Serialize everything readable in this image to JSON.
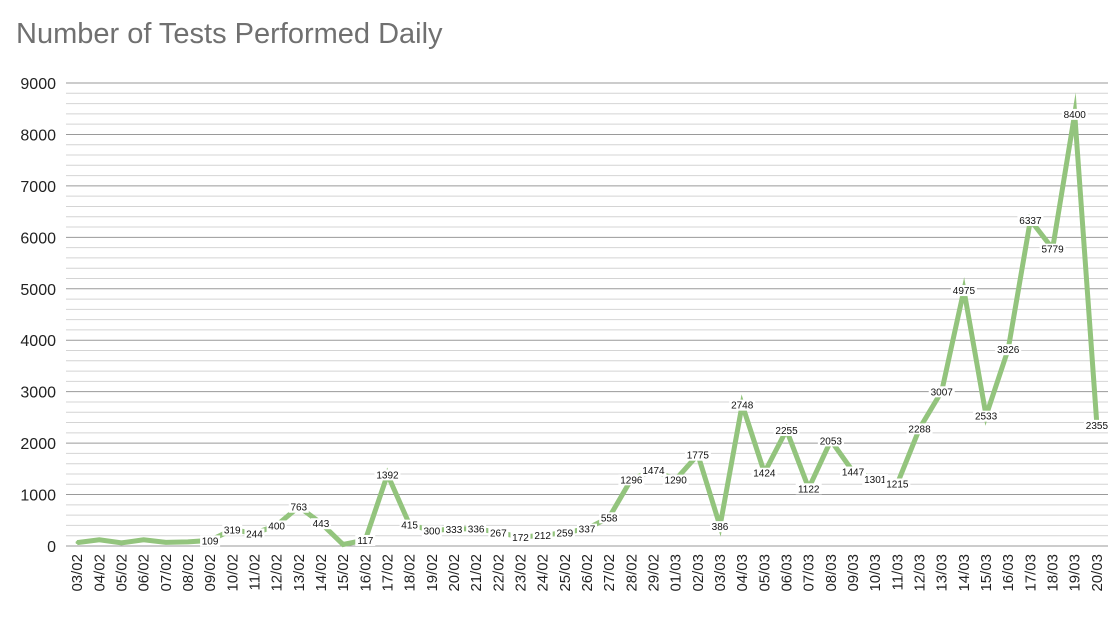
{
  "chart_data": {
    "type": "line",
    "title": "Number of Tests Performed Daily",
    "xlabel": "",
    "ylabel": "",
    "ylim": [
      0,
      9000
    ],
    "yticks": [
      0,
      1000,
      2000,
      3000,
      4000,
      5000,
      6000,
      7000,
      8000,
      9000
    ],
    "minor_grid_step": 200,
    "grid": true,
    "legend": "none",
    "line_color": "#93c47d",
    "categories": [
      "03/02",
      "04/02",
      "05/02",
      "06/02",
      "07/02",
      "08/02",
      "09/02",
      "10/02",
      "11/02",
      "12/02",
      "13/02",
      "14/02",
      "15/02",
      "16/02",
      "17/02",
      "18/02",
      "19/02",
      "20/02",
      "21/02",
      "22/02",
      "23/02",
      "24/02",
      "25/02",
      "26/02",
      "27/02",
      "28/02",
      "29/02",
      "01/03",
      "02/03",
      "03/03",
      "04/03",
      "05/03",
      "06/03",
      "07/03",
      "08/03",
      "09/03",
      "10/03",
      "11/03",
      "12/03",
      "13/03",
      "14/03",
      "15/03",
      "16/03",
      "17/03",
      "18/03",
      "19/03",
      "20/03"
    ],
    "series": [
      {
        "values": [
          67,
          120,
          60,
          120,
          70,
          80,
          109,
          319,
          244,
          400,
          763,
          443,
          30,
          117,
          1392,
          415,
          300,
          333,
          336,
          267,
          172,
          212,
          259,
          337,
          558,
          1296,
          1474,
          1290,
          1775,
          386,
          2748,
          1424,
          2255,
          1122,
          2053,
          1447,
          1301,
          1215,
          2288,
          3007,
          4975,
          2533,
          3826,
          6337,
          5779,
          8400,
          2355
        ],
        "labels": [
          "",
          "",
          "",
          "",
          "",
          "",
          "109",
          "319",
          "244",
          "400",
          "763",
          "443",
          "",
          "117",
          "1392",
          "415",
          "300",
          "333",
          "336",
          "267",
          "172",
          "212",
          "259",
          "337",
          "558",
          "1296",
          "1474",
          "1290",
          "1775",
          "386",
          "2748",
          "1424",
          "2255",
          "1122",
          "2053",
          "1447",
          "1301",
          "1215",
          "2288",
          "3007",
          "4975",
          "2533",
          "3826",
          "6337",
          "5779",
          "8400",
          "2355"
        ]
      }
    ]
  }
}
